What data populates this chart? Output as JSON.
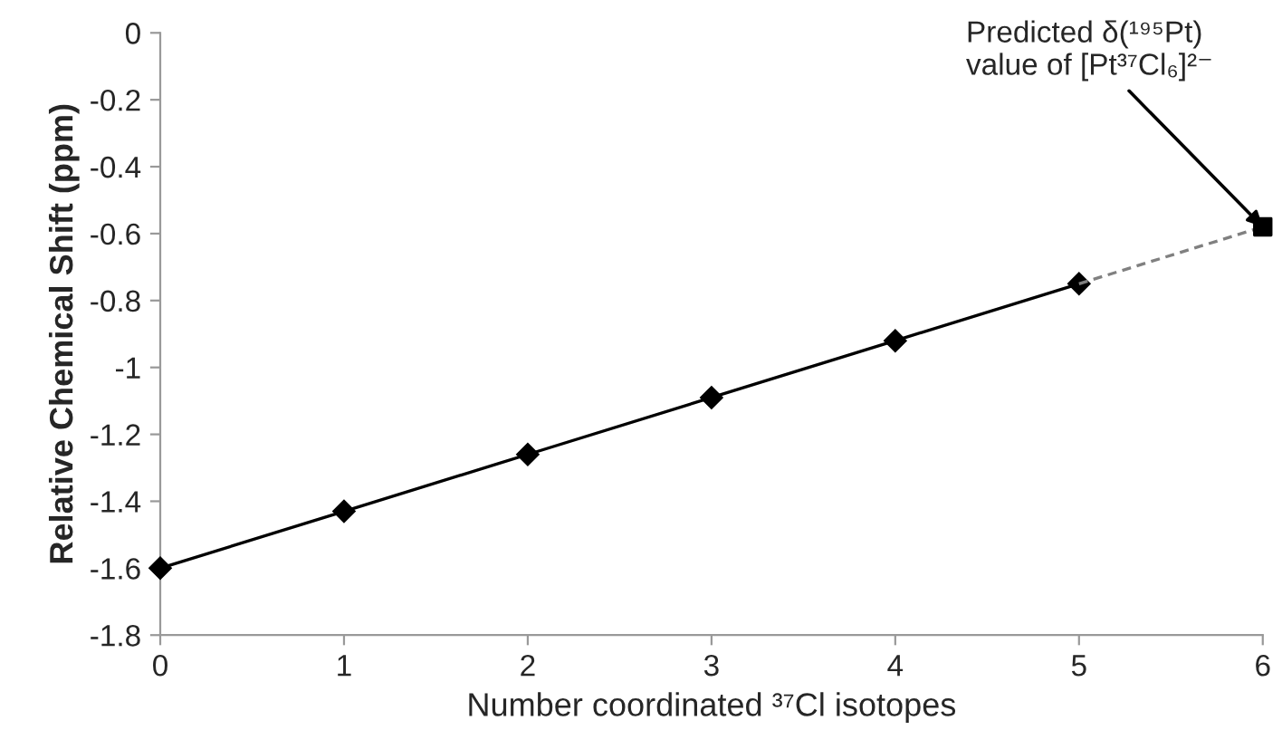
{
  "chart_data": {
    "type": "line",
    "xlabel": "Number coordinated ³⁷Cl isotopes",
    "ylabel": "Relative Chemical Shift (ppm)",
    "series": [
      {
        "color": "#000000",
        "marker": "diamond",
        "line_style": "solid",
        "x": [
          0,
          1,
          2,
          3,
          4,
          5
        ],
        "values": [
          -1.6,
          -1.43,
          -1.26,
          -1.09,
          -0.92,
          -0.75
        ]
      },
      {
        "color": "#808080",
        "marker": "none",
        "line_style": "dashed",
        "x": [
          5,
          6
        ],
        "values": [
          -0.75,
          -0.58
        ]
      },
      {
        "type": "scatter",
        "color": "#000000",
        "marker": "square",
        "x": [
          6
        ],
        "values": [
          -0.58
        ]
      }
    ],
    "annotations": [
      {
        "text": "Predicted δ(¹⁹⁵Pt)\nvalue of [Pt³⁷Cl₆]²⁻",
        "x": 6,
        "y": -0.58
      }
    ],
    "xlim": [
      0,
      6
    ],
    "ylim": [
      -1.8,
      0
    ],
    "xticks": [
      0,
      1,
      2,
      3,
      4,
      5,
      6
    ],
    "yticks": [
      0,
      -0.2,
      -0.4,
      -0.6,
      -0.8,
      -1,
      -1.2,
      -1.4,
      -1.6,
      -1.8
    ],
    "grid": false,
    "legend": false
  }
}
